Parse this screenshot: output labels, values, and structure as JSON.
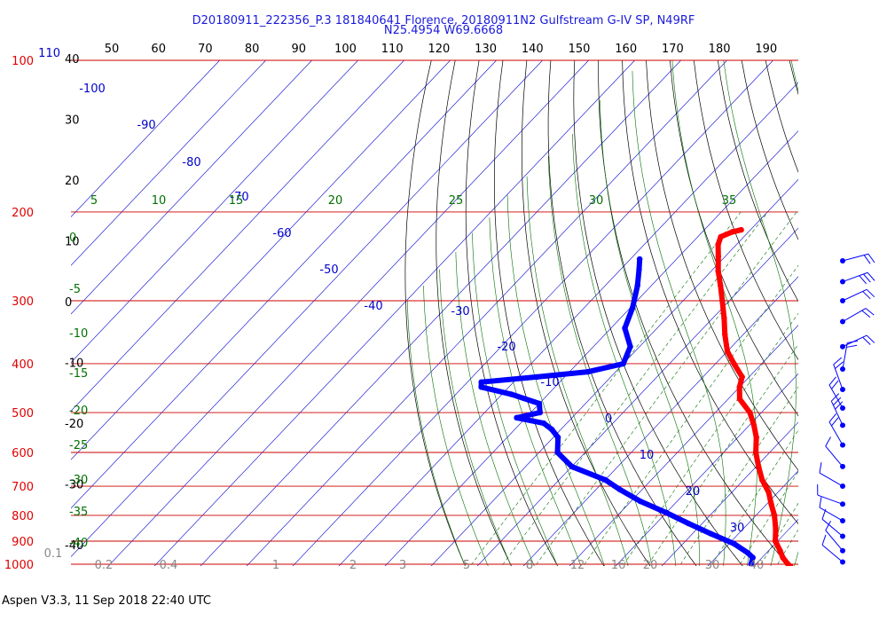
{
  "title_line1": "D20180911_222356_P.3 181840641 Florence, 20180911N2 Gulfstream G-IV SP, N49RF",
  "title_line2": "N25.4954 W69.6668",
  "footer": "Aspen V3.3, 11 Sep 2018  22:40 UTC",
  "colors": {
    "temperature": "#ff0000",
    "dewpoint": "#0000ff",
    "isobar": "#cc0000",
    "isotherm": "#0000cc",
    "dry_adiabat": "#000000",
    "moist_adiabat": "#007000",
    "mixing_ratio": "#007000",
    "wind": "#0000ff"
  },
  "chart_data": {
    "type": "skew-t",
    "pressure_labels": [
      "100",
      "200",
      "300",
      "400",
      "500",
      "600",
      "700",
      "800",
      "900",
      "1000"
    ],
    "pressure_label_110": "110",
    "top_tick_labels": [
      "50",
      "60",
      "70",
      "80",
      "90",
      "100",
      "110",
      "120",
      "130",
      "140",
      "150",
      "160",
      "170",
      "180",
      "190"
    ],
    "left_temp_labels": [
      "40",
      "30",
      "20",
      "10",
      "0",
      "-10",
      "-20",
      "-30",
      "-40"
    ],
    "isotherm_labels": [
      "-100",
      "-90",
      "-80",
      "-70",
      "-60",
      "-50",
      "-40",
      "-30",
      "-20",
      "-10",
      "0",
      "10",
      "20",
      "30"
    ],
    "theta_e_labels": [
      "5",
      "10",
      "15",
      "20",
      "25",
      "30",
      "35"
    ],
    "left_green_labels": [
      "0",
      "-5",
      "-10",
      "-15",
      "-20",
      "-25",
      "-30",
      "-35",
      "-40"
    ],
    "mixing_ratio_labels": [
      "0.1",
      "0.2",
      "0.4",
      "1",
      "2",
      "3",
      "5",
      "8",
      "12",
      "16",
      "20",
      "30",
      "40"
    ],
    "temperature_profile": [
      {
        "p": 217,
        "t": -52
      },
      {
        "p": 219,
        "t": -53.5
      },
      {
        "p": 224,
        "t": -55
      },
      {
        "p": 232,
        "t": -54
      },
      {
        "p": 245,
        "t": -51.5
      },
      {
        "p": 262,
        "t": -48.5
      },
      {
        "p": 280,
        "t": -45
      },
      {
        "p": 300,
        "t": -41.5
      },
      {
        "p": 325,
        "t": -37.5
      },
      {
        "p": 350,
        "t": -34
      },
      {
        "p": 378,
        "t": -30
      },
      {
        "p": 400,
        "t": -26
      },
      {
        "p": 425,
        "t": -21.5
      },
      {
        "p": 445,
        "t": -20
      },
      {
        "p": 470,
        "t": -17.5
      },
      {
        "p": 500,
        "t": -12.5
      },
      {
        "p": 530,
        "t": -9
      },
      {
        "p": 560,
        "t": -6
      },
      {
        "p": 600,
        "t": -3
      },
      {
        "p": 640,
        "t": 0.5
      },
      {
        "p": 680,
        "t": 4
      },
      {
        "p": 720,
        "t": 8
      },
      {
        "p": 760,
        "t": 11
      },
      {
        "p": 800,
        "t": 14
      },
      {
        "p": 850,
        "t": 17
      },
      {
        "p": 900,
        "t": 19.5
      },
      {
        "p": 940,
        "t": 22.5
      },
      {
        "p": 970,
        "t": 24.5
      },
      {
        "p": 1000,
        "t": 27
      },
      {
        "p": 1010,
        "t": 28
      }
    ],
    "dewpoint_profile": [
      {
        "p": 248,
        "t": -68
      },
      {
        "p": 260,
        "t": -66
      },
      {
        "p": 280,
        "t": -63
      },
      {
        "p": 310,
        "t": -59.5
      },
      {
        "p": 340,
        "t": -57
      },
      {
        "p": 370,
        "t": -52
      },
      {
        "p": 400,
        "t": -50
      },
      {
        "p": 415,
        "t": -56
      },
      {
        "p": 425,
        "t": -66
      },
      {
        "p": 435,
        "t": -77
      },
      {
        "p": 445,
        "t": -76
      },
      {
        "p": 460,
        "t": -68
      },
      {
        "p": 480,
        "t": -60
      },
      {
        "p": 500,
        "t": -58
      },
      {
        "p": 512,
        "t": -62
      },
      {
        "p": 525,
        "t": -55
      },
      {
        "p": 540,
        "t": -52
      },
      {
        "p": 560,
        "t": -49
      },
      {
        "p": 600,
        "t": -46
      },
      {
        "p": 640,
        "t": -40
      },
      {
        "p": 680,
        "t": -30
      },
      {
        "p": 710,
        "t": -25
      },
      {
        "p": 750,
        "t": -18
      },
      {
        "p": 790,
        "t": -10
      },
      {
        "p": 830,
        "t": -3
      },
      {
        "p": 870,
        "t": 4
      },
      {
        "p": 910,
        "t": 11
      },
      {
        "p": 950,
        "t": 16
      },
      {
        "p": 970,
        "t": 18
      },
      {
        "p": 1000,
        "t": 19
      }
    ],
    "wind_profile": [
      {
        "p": 250,
        "dir": 75,
        "spd": 15
      },
      {
        "p": 275,
        "dir": 70,
        "spd": 25
      },
      {
        "p": 300,
        "dir": 65,
        "spd": 20
      },
      {
        "p": 330,
        "dir": 60,
        "spd": 15
      },
      {
        "p": 370,
        "dir": 65,
        "spd": 20
      },
      {
        "p": 410,
        "dir": 10,
        "spd": 20
      },
      {
        "p": 450,
        "dir": 340,
        "spd": 20
      },
      {
        "p": 490,
        "dir": 330,
        "spd": 20
      },
      {
        "p": 530,
        "dir": 335,
        "spd": 25
      },
      {
        "p": 580,
        "dir": 330,
        "spd": 20
      },
      {
        "p": 640,
        "dir": 320,
        "spd": 10
      },
      {
        "p": 700,
        "dir": 300,
        "spd": 10
      },
      {
        "p": 760,
        "dir": 290,
        "spd": 10
      },
      {
        "p": 820,
        "dir": 300,
        "spd": 10
      },
      {
        "p": 880,
        "dir": 310,
        "spd": 10
      },
      {
        "p": 940,
        "dir": 320,
        "spd": 10
      },
      {
        "p": 990,
        "dir": 310,
        "spd": 10
      }
    ]
  }
}
